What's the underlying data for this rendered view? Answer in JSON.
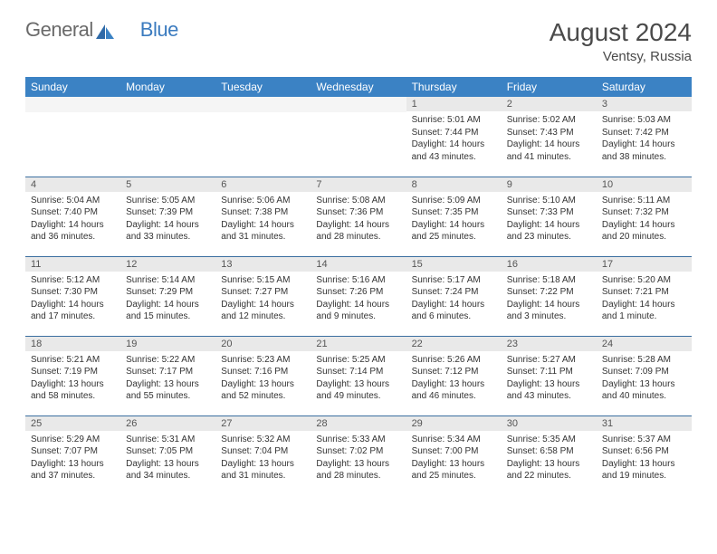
{
  "logo": {
    "text1": "General",
    "text2": "Blue"
  },
  "title": "August 2024",
  "location": "Ventsy, Russia",
  "colors": {
    "header_bg": "#3b82c4",
    "header_text": "#ffffff",
    "daynum_bg": "#e9e9e9",
    "border": "#3b6fa0",
    "body_text": "#333333",
    "title_text": "#4a4a4a",
    "logo_gray": "#6a6a6a",
    "logo_blue": "#3b7bbf"
  },
  "weekdays": [
    "Sunday",
    "Monday",
    "Tuesday",
    "Wednesday",
    "Thursday",
    "Friday",
    "Saturday"
  ],
  "weeks": [
    [
      null,
      null,
      null,
      null,
      {
        "n": "1",
        "sr": "Sunrise: 5:01 AM",
        "ss": "Sunset: 7:44 PM",
        "dl1": "Daylight: 14 hours",
        "dl2": "and 43 minutes."
      },
      {
        "n": "2",
        "sr": "Sunrise: 5:02 AM",
        "ss": "Sunset: 7:43 PM",
        "dl1": "Daylight: 14 hours",
        "dl2": "and 41 minutes."
      },
      {
        "n": "3",
        "sr": "Sunrise: 5:03 AM",
        "ss": "Sunset: 7:42 PM",
        "dl1": "Daylight: 14 hours",
        "dl2": "and 38 minutes."
      }
    ],
    [
      {
        "n": "4",
        "sr": "Sunrise: 5:04 AM",
        "ss": "Sunset: 7:40 PM",
        "dl1": "Daylight: 14 hours",
        "dl2": "and 36 minutes."
      },
      {
        "n": "5",
        "sr": "Sunrise: 5:05 AM",
        "ss": "Sunset: 7:39 PM",
        "dl1": "Daylight: 14 hours",
        "dl2": "and 33 minutes."
      },
      {
        "n": "6",
        "sr": "Sunrise: 5:06 AM",
        "ss": "Sunset: 7:38 PM",
        "dl1": "Daylight: 14 hours",
        "dl2": "and 31 minutes."
      },
      {
        "n": "7",
        "sr": "Sunrise: 5:08 AM",
        "ss": "Sunset: 7:36 PM",
        "dl1": "Daylight: 14 hours",
        "dl2": "and 28 minutes."
      },
      {
        "n": "8",
        "sr": "Sunrise: 5:09 AM",
        "ss": "Sunset: 7:35 PM",
        "dl1": "Daylight: 14 hours",
        "dl2": "and 25 minutes."
      },
      {
        "n": "9",
        "sr": "Sunrise: 5:10 AM",
        "ss": "Sunset: 7:33 PM",
        "dl1": "Daylight: 14 hours",
        "dl2": "and 23 minutes."
      },
      {
        "n": "10",
        "sr": "Sunrise: 5:11 AM",
        "ss": "Sunset: 7:32 PM",
        "dl1": "Daylight: 14 hours",
        "dl2": "and 20 minutes."
      }
    ],
    [
      {
        "n": "11",
        "sr": "Sunrise: 5:12 AM",
        "ss": "Sunset: 7:30 PM",
        "dl1": "Daylight: 14 hours",
        "dl2": "and 17 minutes."
      },
      {
        "n": "12",
        "sr": "Sunrise: 5:14 AM",
        "ss": "Sunset: 7:29 PM",
        "dl1": "Daylight: 14 hours",
        "dl2": "and 15 minutes."
      },
      {
        "n": "13",
        "sr": "Sunrise: 5:15 AM",
        "ss": "Sunset: 7:27 PM",
        "dl1": "Daylight: 14 hours",
        "dl2": "and 12 minutes."
      },
      {
        "n": "14",
        "sr": "Sunrise: 5:16 AM",
        "ss": "Sunset: 7:26 PM",
        "dl1": "Daylight: 14 hours",
        "dl2": "and 9 minutes."
      },
      {
        "n": "15",
        "sr": "Sunrise: 5:17 AM",
        "ss": "Sunset: 7:24 PM",
        "dl1": "Daylight: 14 hours",
        "dl2": "and 6 minutes."
      },
      {
        "n": "16",
        "sr": "Sunrise: 5:18 AM",
        "ss": "Sunset: 7:22 PM",
        "dl1": "Daylight: 14 hours",
        "dl2": "and 3 minutes."
      },
      {
        "n": "17",
        "sr": "Sunrise: 5:20 AM",
        "ss": "Sunset: 7:21 PM",
        "dl1": "Daylight: 14 hours",
        "dl2": "and 1 minute."
      }
    ],
    [
      {
        "n": "18",
        "sr": "Sunrise: 5:21 AM",
        "ss": "Sunset: 7:19 PM",
        "dl1": "Daylight: 13 hours",
        "dl2": "and 58 minutes."
      },
      {
        "n": "19",
        "sr": "Sunrise: 5:22 AM",
        "ss": "Sunset: 7:17 PM",
        "dl1": "Daylight: 13 hours",
        "dl2": "and 55 minutes."
      },
      {
        "n": "20",
        "sr": "Sunrise: 5:23 AM",
        "ss": "Sunset: 7:16 PM",
        "dl1": "Daylight: 13 hours",
        "dl2": "and 52 minutes."
      },
      {
        "n": "21",
        "sr": "Sunrise: 5:25 AM",
        "ss": "Sunset: 7:14 PM",
        "dl1": "Daylight: 13 hours",
        "dl2": "and 49 minutes."
      },
      {
        "n": "22",
        "sr": "Sunrise: 5:26 AM",
        "ss": "Sunset: 7:12 PM",
        "dl1": "Daylight: 13 hours",
        "dl2": "and 46 minutes."
      },
      {
        "n": "23",
        "sr": "Sunrise: 5:27 AM",
        "ss": "Sunset: 7:11 PM",
        "dl1": "Daylight: 13 hours",
        "dl2": "and 43 minutes."
      },
      {
        "n": "24",
        "sr": "Sunrise: 5:28 AM",
        "ss": "Sunset: 7:09 PM",
        "dl1": "Daylight: 13 hours",
        "dl2": "and 40 minutes."
      }
    ],
    [
      {
        "n": "25",
        "sr": "Sunrise: 5:29 AM",
        "ss": "Sunset: 7:07 PM",
        "dl1": "Daylight: 13 hours",
        "dl2": "and 37 minutes."
      },
      {
        "n": "26",
        "sr": "Sunrise: 5:31 AM",
        "ss": "Sunset: 7:05 PM",
        "dl1": "Daylight: 13 hours",
        "dl2": "and 34 minutes."
      },
      {
        "n": "27",
        "sr": "Sunrise: 5:32 AM",
        "ss": "Sunset: 7:04 PM",
        "dl1": "Daylight: 13 hours",
        "dl2": "and 31 minutes."
      },
      {
        "n": "28",
        "sr": "Sunrise: 5:33 AM",
        "ss": "Sunset: 7:02 PM",
        "dl1": "Daylight: 13 hours",
        "dl2": "and 28 minutes."
      },
      {
        "n": "29",
        "sr": "Sunrise: 5:34 AM",
        "ss": "Sunset: 7:00 PM",
        "dl1": "Daylight: 13 hours",
        "dl2": "and 25 minutes."
      },
      {
        "n": "30",
        "sr": "Sunrise: 5:35 AM",
        "ss": "Sunset: 6:58 PM",
        "dl1": "Daylight: 13 hours",
        "dl2": "and 22 minutes."
      },
      {
        "n": "31",
        "sr": "Sunrise: 5:37 AM",
        "ss": "Sunset: 6:56 PM",
        "dl1": "Daylight: 13 hours",
        "dl2": "and 19 minutes."
      }
    ]
  ]
}
